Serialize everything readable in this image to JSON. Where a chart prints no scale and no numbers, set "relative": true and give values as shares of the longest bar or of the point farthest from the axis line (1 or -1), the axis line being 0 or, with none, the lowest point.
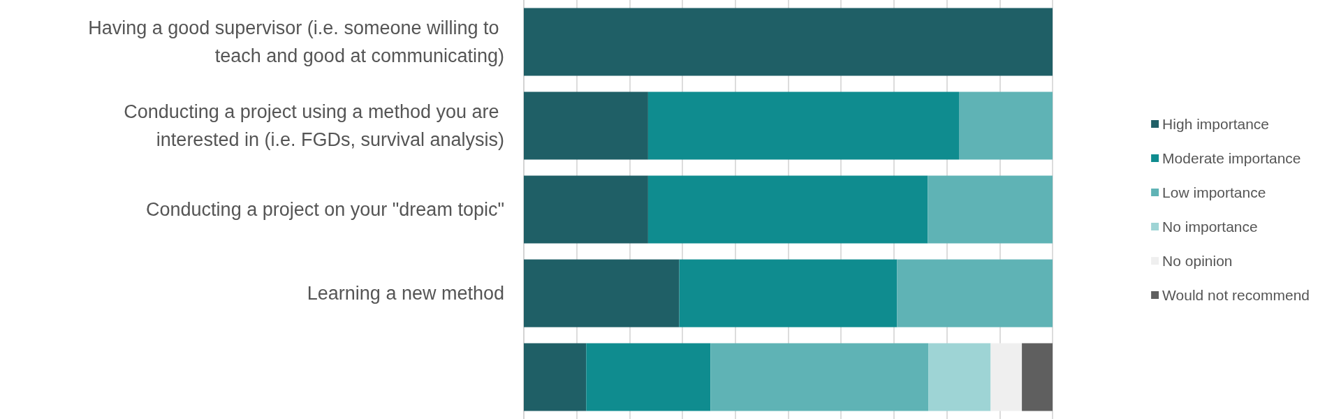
{
  "chart_data": {
    "type": "bar",
    "orientation": "horizontal",
    "stacked": true,
    "relative": true,
    "grid": "x",
    "legend": "right",
    "categories": [
      "Having a good supervisor (i.e. someone willing to teach and good at communicating)",
      "Conducting a project using a method you are interested in (i.e. FGDs, survival analysis)",
      "Conducting a project on your \"dream topic\"",
      "Learning a new method",
      null
    ],
    "series": [
      {
        "name": "High importance",
        "color": "#1f5f66",
        "values": [
          1,
          0.235,
          0.235,
          0.294,
          0.118
        ]
      },
      {
        "name": "Moderate importance",
        "color": "#0f8c8f",
        "values": [
          0,
          0.588,
          0.529,
          0.412,
          0.235
        ]
      },
      {
        "name": "Low importance",
        "color": "#5fb3b5",
        "values": [
          0,
          0.177,
          0.236,
          0.294,
          0.412
        ]
      },
      {
        "name": "No importance",
        "color": "#9ed4d5",
        "values": [
          0,
          0,
          0,
          0,
          0.118
        ]
      },
      {
        "name": "No opinion",
        "color": "#efefef",
        "values": [
          0,
          0,
          0,
          0,
          0.059
        ]
      },
      {
        "name": "Would not recommend",
        "color": "#5f5f5f",
        "values": [
          0,
          0,
          0,
          0,
          0.058
        ]
      }
    ]
  }
}
